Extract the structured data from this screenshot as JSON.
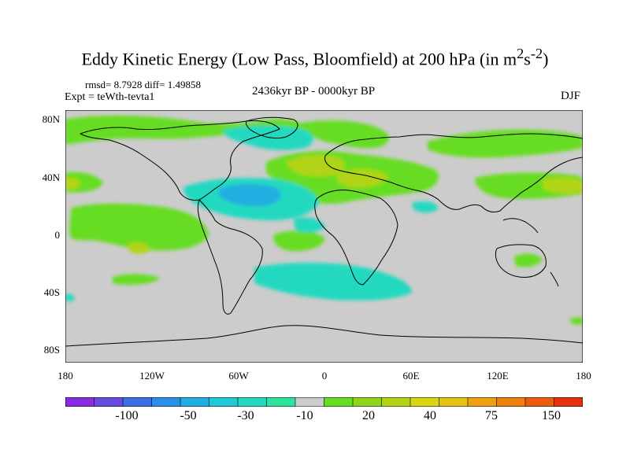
{
  "title_main": "Eddy Kinetic Energy (Low Pass, Bloomfield) at 200 hPa (in m",
  "title_sup1": "2",
  "title_s": "s",
  "title_sup2": "-2",
  "title_close": ")",
  "stats": {
    "rmsd": "8.7928",
    "diff": "1.49858",
    "rmsd_label": "rmsd=",
    "diff_label": "diff="
  },
  "expt_label": "Expt = teWth-tevta1",
  "period": "2436kyr BP - 0000kyr BP",
  "season": "DJF",
  "lat_labels": [
    "80N",
    "40N",
    "0",
    "40S",
    "80S"
  ],
  "lon_labels": [
    "180",
    "120W",
    "60W",
    "0",
    "60E",
    "120E",
    "180"
  ],
  "colorbar": {
    "labels": [
      "-100",
      "-50",
      "-30",
      "-10",
      "20",
      "40",
      "75",
      "150"
    ],
    "colors": [
      "#8a2be2",
      "#6a4be0",
      "#3d6fe0",
      "#2a8fe6",
      "#22aee0",
      "#20c8d8",
      "#22d9c0",
      "#2de29a",
      "#cccccc",
      "#66dd22",
      "#8cd41e",
      "#b2d416",
      "#d6d614",
      "#e6c012",
      "#eca012",
      "#ee8010",
      "#ec5c10",
      "#e63010"
    ]
  },
  "legend_colors": {
    "land_ocean_base": "#cccccc",
    "positive": "#66dd22",
    "positive_strong": "#b2d416",
    "negative": "#22d9c0",
    "negative_strong": "#22aee0",
    "coast": "#000000"
  }
}
